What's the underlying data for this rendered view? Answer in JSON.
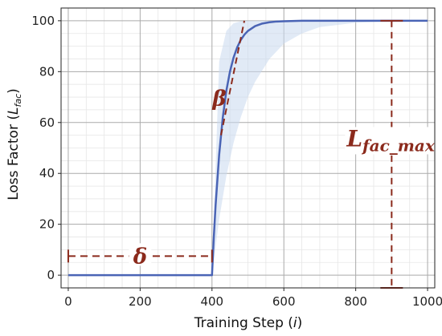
{
  "chart_data": {
    "type": "line",
    "title": "",
    "xlabel": "Training Step (i)",
    "ylabel": "Loss Factor (L_fac)",
    "xlim": [
      -20,
      1020
    ],
    "ylim": [
      -5,
      105
    ],
    "xticks": [
      0,
      200,
      400,
      600,
      800,
      1000
    ],
    "yticks": [
      0,
      20,
      40,
      60,
      80,
      100
    ],
    "grid": true,
    "minor_grid": true,
    "series": [
      {
        "color": "#4a64b5",
        "x": [
          0,
          399,
          400,
          405,
          410,
          420,
          430,
          440,
          450,
          460,
          470,
          480,
          490,
          500,
          520,
          540,
          560,
          580,
          600,
          650,
          700,
          750,
          800,
          900,
          1000
        ],
        "y": [
          0,
          0,
          0,
          14.8,
          27.4,
          47.4,
          61.9,
          72.5,
          80.0,
          85.5,
          89.5,
          92.4,
          94.5,
          96.0,
          97.9,
          98.9,
          99.4,
          99.7,
          99.8,
          100,
          100,
          100,
          100,
          100,
          100
        ]
      }
    ],
    "band": {
      "color": "#c9d9ef",
      "x": [
        400,
        420,
        440,
        460,
        480,
        500,
        520,
        560,
        600,
        650,
        700,
        800,
        900,
        1000
      ],
      "upper": [
        0,
        84,
        96,
        99,
        99.8,
        100,
        100,
        100,
        100,
        100,
        100,
        100,
        100,
        100
      ],
      "lower": [
        0,
        22,
        39,
        52,
        62,
        70,
        76,
        85,
        91,
        95,
        97.5,
        99.2,
        99.8,
        100
      ]
    },
    "annotations": {
      "delta": {
        "symbol": "δ",
        "y": 7.5,
        "x_from": 0,
        "x_to": 400
      },
      "beta": {
        "symbol": "β",
        "line": [
          [
            425,
            55
          ],
          [
            490,
            100
          ]
        ]
      },
      "l_fac_max": {
        "symbol": "L",
        "subscript": "fac_max",
        "x": 900,
        "y_from": -5,
        "y_to": 100
      }
    },
    "annotation_color": "#8b2a1c"
  },
  "labels": {
    "xlabel_main": "Training Step (",
    "xlabel_var": "i",
    "xlabel_end": ")",
    "ylabel_main": "Loss Factor (",
    "ylabel_var": "L",
    "ylabel_sub": "fac",
    "ylabel_end": ")"
  }
}
